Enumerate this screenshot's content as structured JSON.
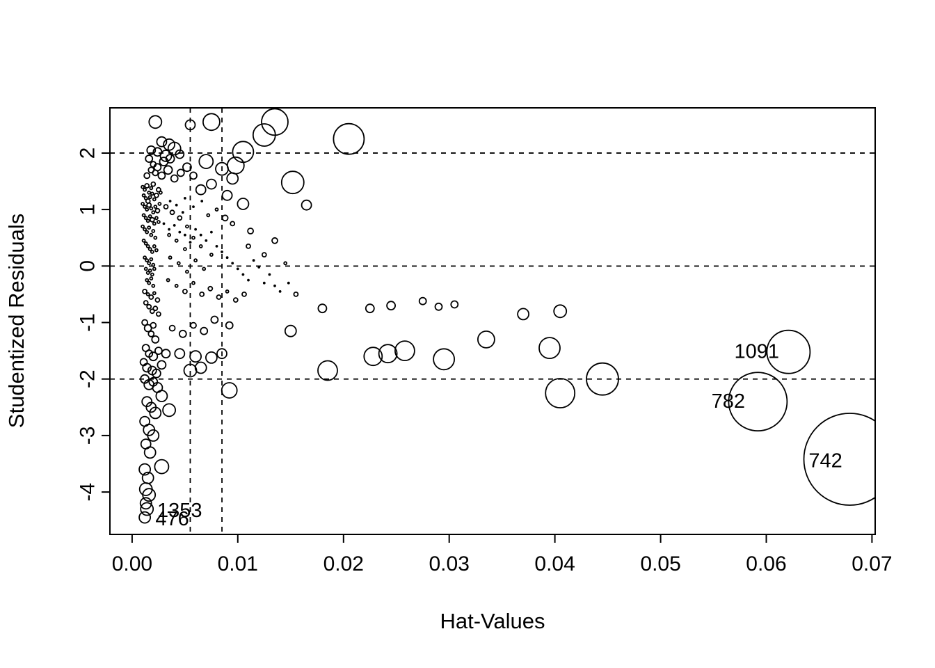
{
  "chart_data": {
    "type": "scatter",
    "title": "",
    "xlabel": "Hat-Values",
    "ylabel": "Studentized Residuals",
    "xlim": [
      -0.0021,
      0.0703
    ],
    "ylim": [
      -4.75,
      2.8
    ],
    "x_ticks": [
      0,
      0.01,
      0.02,
      0.03,
      0.04,
      0.05,
      0.06,
      0.07
    ],
    "x_tick_labels": [
      "0.00",
      "0.01",
      "0.02",
      "0.03",
      "0.04",
      "0.05",
      "0.06",
      "0.07"
    ],
    "y_ticks": [
      -4,
      -3,
      -2,
      -1,
      0,
      1,
      2
    ],
    "y_tick_labels": [
      "-4",
      "-3",
      "-2",
      "-1",
      "0",
      "1",
      "2"
    ],
    "h_reference_lines": [
      -2,
      0,
      2
    ],
    "v_reference_lines": [
      0.0055,
      0.0085
    ],
    "reference_line_style": "dashed",
    "grid": false,
    "legend": null,
    "points": [
      [
        0.0205,
        2.25,
        22
      ],
      [
        0.0135,
        2.55,
        19
      ],
      [
        0.0125,
        2.32,
        16
      ],
      [
        0.0105,
        2.02,
        15
      ],
      [
        0.0075,
        2.55,
        12
      ],
      [
        0.0022,
        2.55,
        9
      ],
      [
        0.0055,
        2.5,
        7
      ],
      [
        0.0035,
        2.15,
        8
      ],
      [
        0.004,
        2.08,
        9
      ],
      [
        0.0028,
        2.2,
        7
      ],
      [
        0.0018,
        2.05,
        6
      ],
      [
        0.0032,
        1.95,
        8
      ],
      [
        0.007,
        1.85,
        10
      ],
      [
        0.0085,
        1.72,
        9
      ],
      [
        0.0098,
        1.78,
        12
      ],
      [
        0.0095,
        1.55,
        8
      ],
      [
        0.0152,
        1.48,
        16
      ],
      [
        0.0075,
        1.45,
        7
      ],
      [
        0.0065,
        1.35,
        7
      ],
      [
        0.009,
        1.25,
        7
      ],
      [
        0.0105,
        1.1,
        8
      ],
      [
        0.0165,
        1.08,
        7
      ],
      [
        0.0024,
        2.02,
        6
      ],
      [
        0.0045,
        1.98,
        6
      ],
      [
        0.0028,
        1.6,
        5
      ],
      [
        0.0034,
        1.7,
        6
      ],
      [
        0.004,
        1.55,
        5
      ],
      [
        0.0046,
        1.65,
        5
      ],
      [
        0.0052,
        1.75,
        6
      ],
      [
        0.0058,
        1.6,
        5
      ],
      [
        0.0024,
        1.75,
        5
      ],
      [
        0.003,
        1.85,
        6
      ],
      [
        0.0036,
        1.9,
        6
      ],
      [
        0.0014,
        1.6,
        4
      ],
      [
        0.0018,
        1.7,
        4
      ],
      [
        0.0022,
        1.65,
        4
      ],
      [
        0.0016,
        1.9,
        5
      ],
      [
        0.002,
        1.8,
        4
      ],
      [
        0.001,
        1.4,
        2
      ],
      [
        0.0012,
        1.35,
        2
      ],
      [
        0.0014,
        1.42,
        3
      ],
      [
        0.0016,
        1.3,
        2
      ],
      [
        0.0018,
        1.38,
        2
      ],
      [
        0.002,
        1.45,
        3
      ],
      [
        0.0011,
        1.25,
        2
      ],
      [
        0.0013,
        1.2,
        2
      ],
      [
        0.0015,
        1.15,
        3
      ],
      [
        0.0017,
        1.22,
        2
      ],
      [
        0.0019,
        1.28,
        2
      ],
      [
        0.0021,
        1.18,
        2
      ],
      [
        0.0023,
        1.25,
        3
      ],
      [
        0.0025,
        1.35,
        3
      ],
      [
        0.0027,
        1.3,
        2
      ],
      [
        0.001,
        1.1,
        2
      ],
      [
        0.0012,
        1.05,
        2
      ],
      [
        0.0014,
        1.0,
        2
      ],
      [
        0.0016,
        1.08,
        3
      ],
      [
        0.0018,
        1.02,
        2
      ],
      [
        0.002,
        0.95,
        2
      ],
      [
        0.0022,
        1.05,
        2
      ],
      [
        0.0024,
        0.98,
        3
      ],
      [
        0.0026,
        1.1,
        2
      ],
      [
        0.0011,
        0.9,
        2
      ],
      [
        0.0013,
        0.85,
        2
      ],
      [
        0.0015,
        0.8,
        2
      ],
      [
        0.0017,
        0.88,
        2
      ],
      [
        0.0019,
        0.82,
        3
      ],
      [
        0.0021,
        0.75,
        2
      ],
      [
        0.0023,
        0.85,
        2
      ],
      [
        0.0025,
        0.78,
        2
      ],
      [
        0.001,
        0.7,
        2
      ],
      [
        0.0012,
        0.65,
        2
      ],
      [
        0.0014,
        0.6,
        2
      ],
      [
        0.0016,
        0.68,
        2
      ],
      [
        0.0018,
        0.55,
        2
      ],
      [
        0.002,
        0.62,
        2
      ],
      [
        0.0022,
        0.5,
        2
      ],
      [
        0.0011,
        0.45,
        2
      ],
      [
        0.0013,
        0.4,
        2
      ],
      [
        0.0015,
        0.35,
        2
      ],
      [
        0.0017,
        0.3,
        2
      ],
      [
        0.0019,
        0.25,
        2
      ],
      [
        0.0021,
        0.35,
        2
      ],
      [
        0.0023,
        0.28,
        2
      ],
      [
        0.0012,
        0.15,
        2
      ],
      [
        0.0014,
        0.1,
        2
      ],
      [
        0.0016,
        0.05,
        2
      ],
      [
        0.0018,
        0.12,
        2
      ],
      [
        0.002,
        0.02,
        2
      ],
      [
        0.0013,
        -0.05,
        2
      ],
      [
        0.0015,
        -0.12,
        2
      ],
      [
        0.0017,
        -0.08,
        2
      ],
      [
        0.0019,
        -0.15,
        2
      ],
      [
        0.0021,
        -0.05,
        2
      ],
      [
        0.0014,
        -0.25,
        2
      ],
      [
        0.0016,
        -0.3,
        2
      ],
      [
        0.0018,
        -0.22,
        2
      ],
      [
        0.002,
        -0.35,
        2
      ],
      [
        0.0012,
        -0.45,
        3
      ],
      [
        0.0015,
        -0.5,
        2
      ],
      [
        0.0018,
        -0.55,
        3
      ],
      [
        0.0021,
        -0.48,
        2
      ],
      [
        0.0024,
        -0.6,
        3
      ],
      [
        0.0013,
        -0.65,
        3
      ],
      [
        0.0016,
        -0.72,
        3
      ],
      [
        0.0019,
        -0.8,
        3
      ],
      [
        0.0022,
        -0.75,
        3
      ],
      [
        0.0025,
        -0.85,
        3
      ],
      [
        0.0012,
        -1.0,
        4
      ],
      [
        0.0015,
        -1.1,
        5
      ],
      [
        0.0018,
        -1.2,
        4
      ],
      [
        0.002,
        -1.05,
        4
      ],
      [
        0.0022,
        -1.3,
        5
      ],
      [
        0.0013,
        -1.45,
        5
      ],
      [
        0.0016,
        -1.55,
        5
      ],
      [
        0.002,
        -1.6,
        6
      ],
      [
        0.0025,
        -1.5,
        5
      ],
      [
        0.0011,
        -1.7,
        5
      ],
      [
        0.0014,
        -1.8,
        6
      ],
      [
        0.0019,
        -1.85,
        6
      ],
      [
        0.0023,
        -1.9,
        6
      ],
      [
        0.0028,
        -1.75,
        6
      ],
      [
        0.0032,
        -1.55,
        6
      ],
      [
        0.0045,
        -1.55,
        7
      ],
      [
        0.006,
        -1.6,
        8
      ],
      [
        0.0075,
        -1.62,
        8
      ],
      [
        0.0085,
        -1.55,
        7
      ],
      [
        0.0055,
        -1.85,
        9
      ],
      [
        0.0065,
        -1.8,
        8
      ],
      [
        0.0012,
        -2.0,
        6
      ],
      [
        0.0016,
        -2.1,
        7
      ],
      [
        0.002,
        -2.05,
        6
      ],
      [
        0.0024,
        -2.15,
        7
      ],
      [
        0.0028,
        -2.3,
        8
      ],
      [
        0.0014,
        -2.4,
        7
      ],
      [
        0.0018,
        -2.5,
        7
      ],
      [
        0.0022,
        -2.6,
        8
      ],
      [
        0.0035,
        -2.55,
        9
      ],
      [
        0.0012,
        -2.75,
        7
      ],
      [
        0.0016,
        -2.9,
        8
      ],
      [
        0.002,
        -3.0,
        8
      ],
      [
        0.0013,
        -3.15,
        7
      ],
      [
        0.0017,
        -3.3,
        8
      ],
      [
        0.0028,
        -3.55,
        10
      ],
      [
        0.0012,
        -3.6,
        8
      ],
      [
        0.0015,
        -3.75,
        8
      ],
      [
        0.0013,
        -3.95,
        9
      ],
      [
        0.0016,
        -4.05,
        9
      ],
      [
        0.0013,
        -4.2,
        8
      ],
      [
        0.0092,
        -2.2,
        11
      ],
      [
        0.0032,
        1.05,
        3
      ],
      [
        0.0038,
        0.95,
        3
      ],
      [
        0.0045,
        0.85,
        3
      ],
      [
        0.0052,
        0.7,
        2
      ],
      [
        0.0035,
        0.55,
        2
      ],
      [
        0.0042,
        0.45,
        2
      ],
      [
        0.005,
        0.3,
        2
      ],
      [
        0.0058,
        0.5,
        2
      ],
      [
        0.0065,
        0.35,
        2
      ],
      [
        0.0036,
        0.15,
        2
      ],
      [
        0.0044,
        0.05,
        2
      ],
      [
        0.0052,
        -0.1,
        2
      ],
      [
        0.006,
        0.1,
        2
      ],
      [
        0.0068,
        -0.05,
        2
      ],
      [
        0.0075,
        0.2,
        2
      ],
      [
        0.0034,
        -0.25,
        2
      ],
      [
        0.0042,
        -0.35,
        2
      ],
      [
        0.005,
        -0.45,
        3
      ],
      [
        0.0058,
        -0.3,
        2
      ],
      [
        0.0066,
        -0.5,
        3
      ],
      [
        0.0074,
        -0.4,
        3
      ],
      [
        0.0082,
        -0.55,
        3
      ],
      [
        0.009,
        -0.45,
        2
      ],
      [
        0.0098,
        -0.6,
        3
      ],
      [
        0.0106,
        -0.5,
        3
      ],
      [
        0.0036,
        1.15,
        1
      ],
      [
        0.0042,
        1.08,
        1
      ],
      [
        0.005,
        1.2,
        1
      ],
      [
        0.0058,
        1.05,
        1
      ],
      [
        0.0066,
        1.15,
        1
      ],
      [
        0.0048,
        0.95,
        1
      ],
      [
        0.0072,
        0.9,
        2
      ],
      [
        0.008,
        1.0,
        2
      ],
      [
        0.0112,
        0.62,
        4
      ],
      [
        0.0095,
        0.75,
        3
      ],
      [
        0.0088,
        0.85,
        4
      ],
      [
        0.003,
        0.75,
        1
      ],
      [
        0.0035,
        0.65,
        1
      ],
      [
        0.004,
        0.72,
        1
      ],
      [
        0.0045,
        0.6,
        1
      ],
      [
        0.005,
        0.55,
        1
      ],
      [
        0.0055,
        0.42,
        1
      ],
      [
        0.006,
        0.65,
        1
      ],
      [
        0.0065,
        0.55,
        1
      ],
      [
        0.007,
        0.45,
        1
      ],
      [
        0.0075,
        0.6,
        1
      ],
      [
        0.008,
        0.35,
        1
      ],
      [
        0.0085,
        0.25,
        1
      ],
      [
        0.009,
        0.15,
        1
      ],
      [
        0.0095,
        0.05,
        1
      ],
      [
        0.01,
        -0.05,
        1
      ],
      [
        0.0105,
        -0.15,
        1
      ],
      [
        0.011,
        -0.25,
        1
      ],
      [
        0.0115,
        0.1,
        1
      ],
      [
        0.012,
        -0.02,
        1
      ],
      [
        0.0125,
        -0.3,
        1
      ],
      [
        0.013,
        -0.15,
        1
      ],
      [
        0.0135,
        -0.35,
        1
      ],
      [
        0.014,
        -0.45,
        1
      ],
      [
        0.0148,
        -0.3,
        1
      ],
      [
        0.0135,
        0.45,
        4
      ],
      [
        0.011,
        0.35,
        3
      ],
      [
        0.0125,
        0.2,
        3
      ],
      [
        0.0145,
        0.05,
        2
      ],
      [
        0.0155,
        -0.5,
        3
      ],
      [
        0.018,
        -0.75,
        6
      ],
      [
        0.0225,
        -0.75,
        6
      ],
      [
        0.0245,
        -0.7,
        6
      ],
      [
        0.0275,
        -0.62,
        5
      ],
      [
        0.029,
        -0.72,
        5
      ],
      [
        0.0305,
        -0.68,
        5
      ],
      [
        0.0405,
        -0.8,
        9
      ],
      [
        0.037,
        -0.85,
        8
      ],
      [
        0.015,
        -1.15,
        8
      ],
      [
        0.0185,
        -1.85,
        14
      ],
      [
        0.0228,
        -1.6,
        13
      ],
      [
        0.0242,
        -1.55,
        13
      ],
      [
        0.0258,
        -1.5,
        14
      ],
      [
        0.0295,
        -1.65,
        15
      ],
      [
        0.0335,
        -1.3,
        12
      ],
      [
        0.0395,
        -1.45,
        15
      ],
      [
        0.0405,
        -2.25,
        21
      ],
      [
        0.0445,
        -2.0,
        23
      ],
      [
        0.0078,
        -0.95,
        5
      ],
      [
        0.0092,
        -1.05,
        5
      ],
      [
        0.0068,
        -1.15,
        5
      ],
      [
        0.0058,
        -1.05,
        4
      ],
      [
        0.0048,
        -1.2,
        5
      ],
      [
        0.0038,
        -1.1,
        4
      ]
    ],
    "labeled_points": [
      {
        "label": "1091",
        "x": 0.0621,
        "y": -1.52,
        "r": 31,
        "label_x": 0.0591,
        "label_y": -1.52
      },
      {
        "label": "782",
        "x": 0.0592,
        "y": -2.4,
        "r": 42,
        "label_x": 0.0564,
        "label_y": -2.4
      },
      {
        "label": "742",
        "x": 0.0679,
        "y": -3.42,
        "r": 66,
        "label_x": 0.0656,
        "label_y": -3.45
      },
      {
        "label": "1353",
        "x": 0.0014,
        "y": -4.3,
        "r": 9,
        "label_x": 0.0045,
        "label_y": -4.33
      },
      {
        "label": "476",
        "x": 0.0012,
        "y": -4.45,
        "r": 8,
        "label_x": 0.0038,
        "label_y": -4.48
      }
    ]
  }
}
